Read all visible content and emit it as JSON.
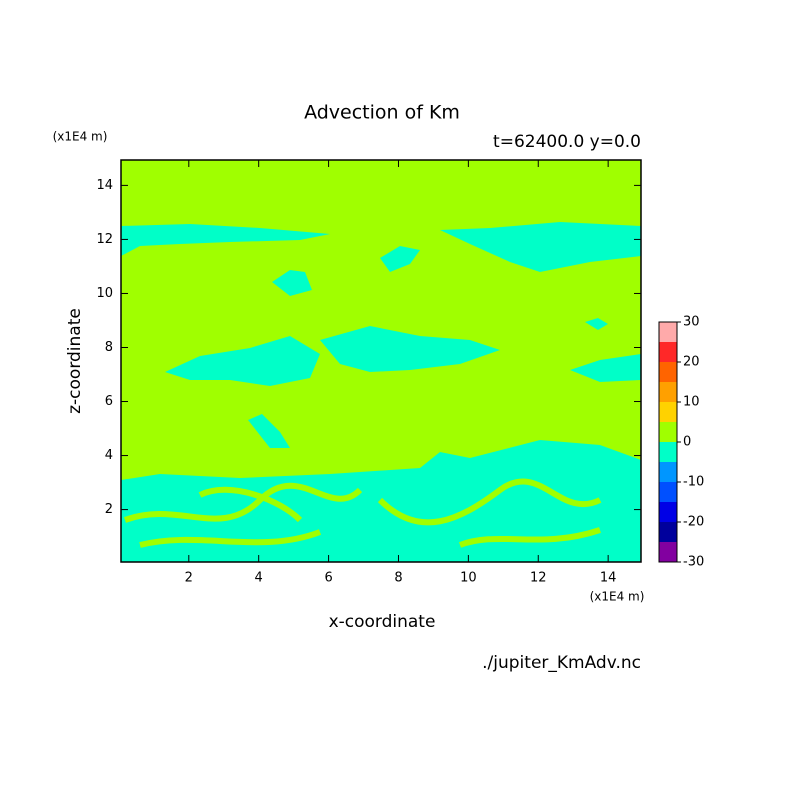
{
  "chart_data": {
    "type": "contour",
    "title": "Advection of Km",
    "subtitle": "t=62400.0 y=0.0",
    "x_label": "x-coordinate",
    "y_label": "z-coordinate",
    "x_unit": "(x1E4 m)",
    "y_unit": "(x1E4 m)",
    "source": "./jupiter_KmAdv.nc",
    "xlim": [
      0.06,
      14.94
    ],
    "ylim": [
      0.06,
      14.94
    ],
    "xticks": [
      2,
      4,
      6,
      8,
      10,
      12,
      14
    ],
    "yticks": [
      2,
      4,
      6,
      8,
      10,
      12,
      14
    ],
    "colorbar": {
      "levels": [
        -30,
        -25,
        -20,
        -15,
        -10,
        -5,
        0,
        5,
        10,
        15,
        20,
        25,
        30
      ],
      "colors": [
        "#8200a0",
        "#00009c",
        "#0000e6",
        "#0050ff",
        "#0096ff",
        "#00ffc8",
        "#a0ff00",
        "#ffd200",
        "#ffa000",
        "#ff6400",
        "#ff2828",
        "#ffaaaa"
      ],
      "ticks": [
        -30,
        -20,
        -10,
        0,
        10,
        20,
        30
      ]
    }
  }
}
